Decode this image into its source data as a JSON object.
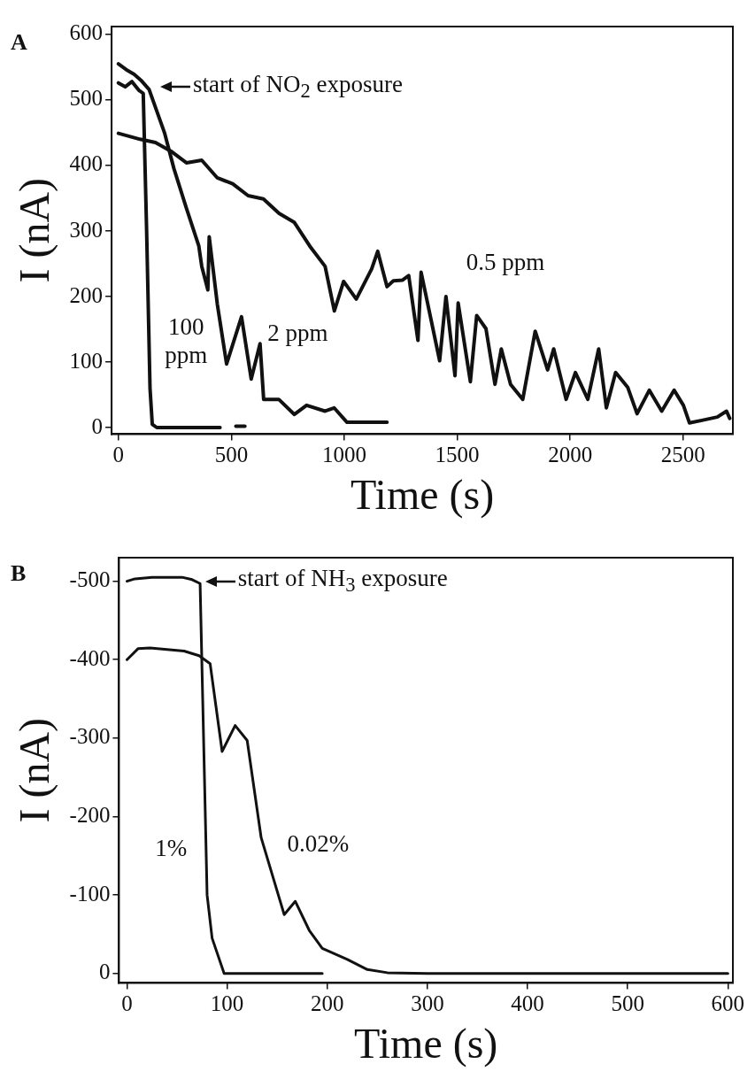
{
  "chart_data": [
    {
      "type": "line",
      "title": "A",
      "xlabel": "Time (s)",
      "ylabel": "I (nA)",
      "xlim": [
        -30,
        2720
      ],
      "ylim": [
        -10,
        612
      ],
      "xticks": [
        0,
        500,
        1000,
        1500,
        2000,
        2500
      ],
      "yticks": [
        0,
        100,
        200,
        300,
        400,
        500,
        600
      ],
      "grid": false,
      "legend": false,
      "marker": "none",
      "line_style": "solid",
      "annotations": [
        "start of NO$_{2}$ exposure"
      ],
      "series": [
        {
          "name": "100 ppm",
          "color": "#111111",
          "x": [
            0,
            30,
            60,
            90,
            110,
            125,
            140,
            150,
            170,
            450,
            480,
            520,
            560
          ],
          "values": [
            526,
            520,
            528,
            515,
            510,
            300,
            60,
            5,
            0,
            0,
            null,
            2,
            2
          ]
        },
        {
          "name": "2 ppm",
          "color": "#111111",
          "x": [
            0,
            40,
            70,
            100,
            136,
            205,
            246,
            300,
            356,
            369,
            396,
            402,
            438,
            479,
            545,
            588,
            627,
            643,
            710,
            779,
            833,
            915,
            955,
            1012,
            1189
          ],
          "values": [
            555,
            545,
            539,
            530,
            516,
            449,
            395,
            336,
            277,
            246,
            210,
            291,
            188,
            97,
            169,
            74,
            128,
            43,
            43,
            20,
            34,
            25,
            30,
            8,
            8
          ]
        },
        {
          "name": "0.5 ppm",
          "color": "#111111",
          "x": [
            0,
            96,
            164,
            232,
            301,
            369,
            438,
            506,
            574,
            642,
            711,
            779,
            847,
            915,
            956,
            997,
            1053,
            1121,
            1148,
            1189,
            1217,
            1258,
            1285,
            1326,
            1340,
            1422,
            1450,
            1490,
            1504,
            1558,
            1586,
            1627,
            1667,
            1695,
            1736,
            1790,
            1845,
            1900,
            1927,
            1982,
            2023,
            2078,
            2126,
            2160,
            2201,
            2255,
            2296,
            2350,
            2405,
            2460,
            2501,
            2528,
            2583,
            2651,
            2692,
            2706
          ],
          "values": [
            449,
            440,
            435,
            422,
            404,
            408,
            381,
            372,
            354,
            349,
            327,
            313,
            277,
            246,
            178,
            223,
            196,
            242,
            269,
            215,
            224,
            225,
            232,
            133,
            237,
            102,
            200,
            79,
            190,
            70,
            171,
            151,
            66,
            120,
            66,
            43,
            147,
            88,
            120,
            43,
            84,
            43,
            120,
            30,
            84,
            61,
            21,
            57,
            25,
            57,
            34,
            7,
            11,
            16,
            25,
            14
          ]
        }
      ]
    },
    {
      "type": "line",
      "title": "B",
      "xlabel": "Time (s)",
      "ylabel": "I (nA)",
      "xlim": [
        -8,
        605
      ],
      "ylim": [
        12,
        -530
      ],
      "xticks": [
        0,
        100,
        200,
        300,
        400,
        500,
        600
      ],
      "yticks": [
        0,
        -100,
        -200,
        -300,
        -400,
        -500
      ],
      "grid": false,
      "legend": false,
      "marker": "none",
      "line_style": "solid",
      "annotations": [
        "start of NH$_{3}$ exposure"
      ],
      "series": [
        {
          "name": "1%",
          "color": "#111111",
          "x": [
            0,
            8,
            25,
            55,
            65,
            73,
            80,
            85,
            97,
            195
          ],
          "values": [
            -500,
            -503,
            -505,
            -505,
            -502,
            -497,
            -100,
            -45,
            0,
            0
          ]
        },
        {
          "name": "0.02%",
          "color": "#111111",
          "x": [
            0,
            11,
            23,
            57,
            72,
            83,
            95,
            108,
            120,
            134,
            157,
            168,
            182,
            195,
            220,
            240,
            260,
            300,
            600
          ],
          "values": [
            -400,
            -414,
            -415,
            -411,
            -405,
            -395,
            -283,
            -316,
            -297,
            -173,
            -75,
            -92,
            -55,
            -32,
            -18,
            -5,
            -1,
            0,
            0
          ]
        }
      ]
    }
  ]
}
